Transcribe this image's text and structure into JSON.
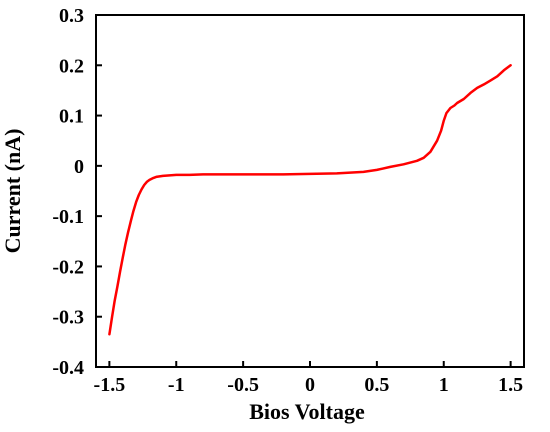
{
  "chart_data": {
    "type": "line",
    "title": "",
    "xlabel": "Bios Voltage",
    "ylabel": "Current (nA)",
    "xlim": [
      -1.6,
      1.6
    ],
    "ylim": [
      -0.4,
      0.3
    ],
    "x_ticks": [
      -1.5,
      -1,
      -0.5,
      0,
      0.5,
      1,
      1.5
    ],
    "x_tick_labels": [
      "-1.5",
      "-1",
      "-0.5",
      "0",
      "0.5",
      "1",
      "1.5"
    ],
    "y_ticks": [
      -0.4,
      -0.3,
      -0.2,
      -0.1,
      0,
      0.1,
      0.2,
      0.3
    ],
    "y_tick_labels": [
      "-0.4",
      "-0.3",
      "-0.2",
      "-0.1",
      "0",
      "0.1",
      "0.2",
      "0.3"
    ],
    "grid": false,
    "legend": "none",
    "series": [
      {
        "color": "#ff0000",
        "x": [
          -1.5,
          -1.48,
          -1.46,
          -1.44,
          -1.42,
          -1.4,
          -1.38,
          -1.36,
          -1.34,
          -1.32,
          -1.3,
          -1.28,
          -1.26,
          -1.24,
          -1.22,
          -1.2,
          -1.17,
          -1.15,
          -1.1,
          -1.05,
          -1.0,
          -0.9,
          -0.8,
          -0.6,
          -0.4,
          -0.2,
          0.0,
          0.2,
          0.4,
          0.5,
          0.6,
          0.7,
          0.8,
          0.85,
          0.9,
          0.95,
          0.98,
          1.0,
          1.02,
          1.05,
          1.08,
          1.1,
          1.15,
          1.2,
          1.25,
          1.3,
          1.35,
          1.4,
          1.45,
          1.5
        ],
        "y": [
          -0.335,
          -0.3,
          -0.268,
          -0.24,
          -0.21,
          -0.182,
          -0.156,
          -0.132,
          -0.11,
          -0.09,
          -0.072,
          -0.058,
          -0.047,
          -0.038,
          -0.032,
          -0.028,
          -0.024,
          -0.022,
          -0.02,
          -0.019,
          -0.018,
          -0.018,
          -0.017,
          -0.017,
          -0.017,
          -0.017,
          -0.016,
          -0.015,
          -0.012,
          -0.008,
          -0.002,
          0.003,
          0.01,
          0.016,
          0.028,
          0.05,
          0.07,
          0.09,
          0.105,
          0.115,
          0.12,
          0.125,
          0.133,
          0.145,
          0.155,
          0.162,
          0.17,
          0.178,
          0.19,
          0.2
        ]
      }
    ]
  }
}
